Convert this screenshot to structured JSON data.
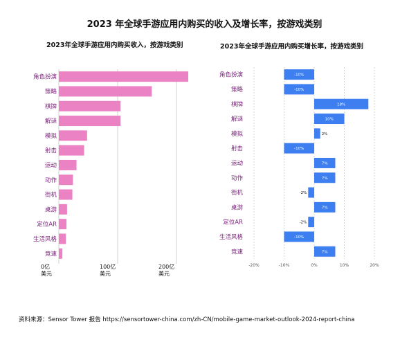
{
  "title": "2023 年全球手游应用内购买的收入及增长率，按游戏类别",
  "source": "资料来源：Sensor Tower 报告 https://sensortower-china.com/zh-CN/mobile-game-market-outlook-2024-report-china",
  "chart_data": [
    {
      "type": "bar",
      "orientation": "horizontal",
      "title": "2023年全球手游应用内购买收入，按游戏类别",
      "categories": [
        "角色扮演",
        "策略",
        "棋牌",
        "解谜",
        "模拟",
        "射击",
        "运动",
        "动作",
        "街机",
        "桌游",
        "定位AR",
        "生活风格",
        "竞速"
      ],
      "values": [
        220,
        158,
        105,
        105,
        48,
        43,
        30,
        24,
        23,
        14,
        13,
        12,
        6
      ],
      "unit": "亿美元",
      "xlim": [
        0,
        220
      ],
      "x_ticks": [
        {
          "value": 0,
          "line1": "0亿",
          "line2": "美元"
        },
        {
          "value": 100,
          "line1": "100亿",
          "line2": "美元"
        },
        {
          "value": 200,
          "line1": "200亿",
          "line2": "美元"
        }
      ],
      "color": "#ea82c4",
      "grid": true
    },
    {
      "type": "bar",
      "orientation": "horizontal",
      "title": "2023年全球手游应用内购买增长率，按游戏类别",
      "categories": [
        "角色扮演",
        "策略",
        "棋牌",
        "解谜",
        "模拟",
        "射击",
        "运动",
        "动作",
        "街机",
        "桌游",
        "定位AR",
        "生活风格",
        "竞速"
      ],
      "values": [
        -10,
        -10,
        18,
        10,
        2,
        -10,
        7,
        7,
        -2,
        7,
        -2,
        -10,
        7
      ],
      "data_labels": [
        "-10%",
        "-10%",
        "18%",
        "10%",
        "2%",
        "-10%",
        "7%",
        "7%",
        "-2%",
        "7%",
        "-2%",
        "-10%",
        "7%"
      ],
      "unit": "%",
      "xlim": [
        -20,
        20
      ],
      "x_ticks": [
        "-20%",
        "-10%",
        "0%",
        "10%",
        "20%"
      ],
      "color": "#3d7ef0",
      "grid": true
    }
  ]
}
